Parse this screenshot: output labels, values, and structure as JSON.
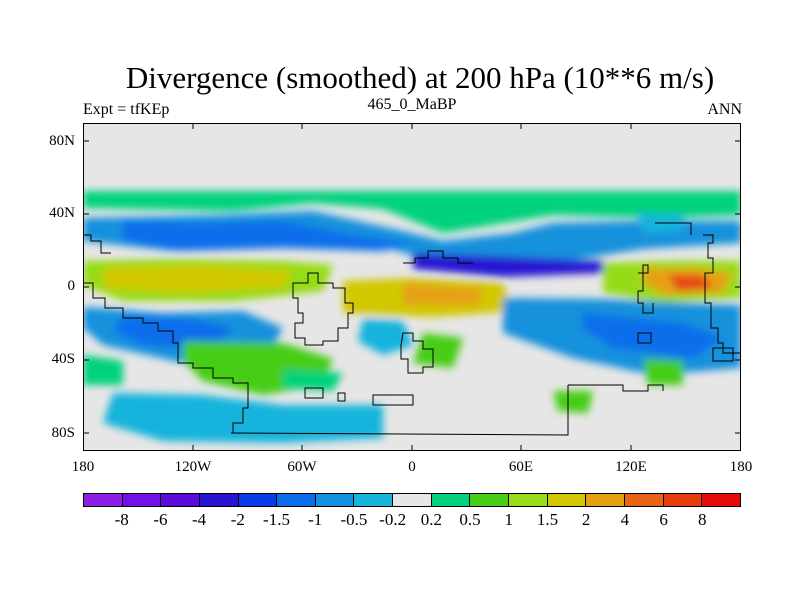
{
  "chart_data": {
    "type": "heatmap",
    "title": "Divergence (smoothed) at 200 hPa (10**6 m/s)",
    "subtitle_left": "Expt = tfKEp",
    "subtitle_center": "465_0_MaBP",
    "subtitle_right": "ANN",
    "x_ticks": [
      "180",
      "120W",
      "60W",
      "0",
      "60E",
      "120E",
      "180"
    ],
    "y_ticks": [
      "80N",
      "40N",
      "0",
      "40S",
      "80S"
    ],
    "xlim": [
      -180,
      180
    ],
    "ylim": [
      -90,
      90
    ],
    "colorbar_colors": [
      "#8c1ee6",
      "#7312e6",
      "#5a0ada",
      "#2814d2",
      "#0a3ce6",
      "#0a6eeb",
      "#1491dc",
      "#19b4dc",
      "#e6e6e6",
      "#00d27d",
      "#46cd14",
      "#96dc19",
      "#d2c800",
      "#e6a014",
      "#e66414",
      "#e63c0a",
      "#e60a0a"
    ],
    "colorbar_labels": [
      "-8",
      "-6",
      "-4",
      "-2",
      "-1.5",
      "-1",
      "-0.5",
      "-0.2",
      "0.2",
      "0.5",
      "1",
      "1.5",
      "2",
      "4",
      "6",
      "8"
    ]
  }
}
